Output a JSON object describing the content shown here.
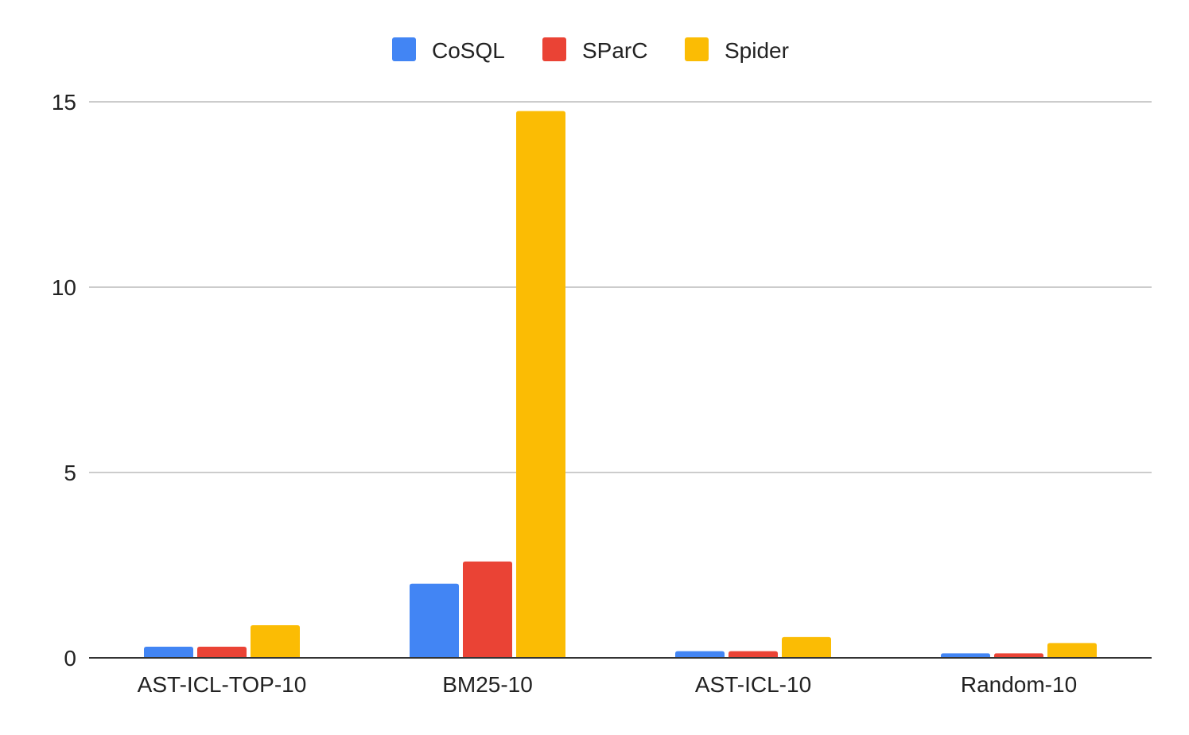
{
  "chart_data": {
    "type": "bar",
    "title": "",
    "xlabel": "",
    "ylabel": "",
    "ylim": [
      0,
      15
    ],
    "yticks": [
      0,
      5,
      10,
      15
    ],
    "grid": true,
    "legend_position": "top-center",
    "categories": [
      "AST-ICL-TOP-10",
      "BM25-10",
      "AST-ICL-10",
      "Random-10"
    ],
    "series": [
      {
        "name": "CoSQL",
        "color": "#4285f4",
        "values": [
          0.3,
          2.0,
          0.18,
          0.12
        ]
      },
      {
        "name": "SParC",
        "color": "#ea4335",
        "values": [
          0.3,
          2.6,
          0.18,
          0.12
        ]
      },
      {
        "name": "Spider",
        "color": "#fbbc04",
        "values": [
          0.88,
          14.75,
          0.56,
          0.4
        ]
      }
    ]
  }
}
